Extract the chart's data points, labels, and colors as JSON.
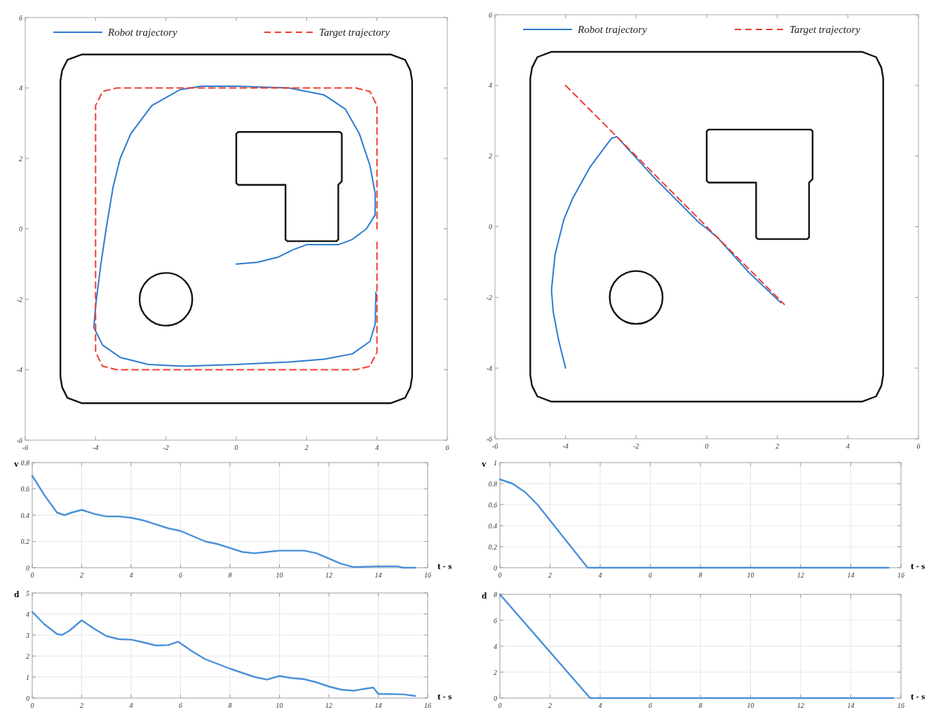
{
  "chart_data": [
    {
      "type": "line",
      "xlim": [
        -6,
        6
      ],
      "ylim": [
        -6,
        6
      ],
      "xticks": [
        -6,
        -4,
        -2,
        0,
        2,
        4,
        6
      ],
      "yticks": [
        -6,
        -4,
        -2,
        0,
        2,
        4,
        6
      ],
      "grid": false,
      "legend": "top",
      "series": [
        {
          "name": "Robot trajectory",
          "color": "#2e7bcf",
          "line_style": "solid",
          "x": [
            0,
            0.6,
            1.2,
            1.6,
            2,
            2.9,
            3.3,
            3.7,
            3.95,
            3.95,
            3.8,
            3.5,
            3.1,
            2.5,
            1.5,
            0,
            -1,
            -1.6,
            -2.4,
            -3,
            -3.3,
            -3.5,
            -3.7,
            -3.85,
            -4,
            -4.05,
            -3.8,
            -3.3,
            -2.5,
            -1.5,
            0,
            1.5,
            2.5,
            3.3,
            3.8,
            3.95,
            3.97
          ],
          "values": [
            -1,
            -0.95,
            -0.8,
            -0.6,
            -0.45,
            -0.45,
            -0.3,
            0,
            0.4,
            1,
            1.8,
            2.7,
            3.4,
            3.8,
            4,
            4.05,
            4.05,
            3.95,
            3.5,
            2.7,
            2,
            1.2,
            0,
            -1,
            -2.2,
            -2.8,
            -3.3,
            -3.65,
            -3.85,
            -3.9,
            -3.85,
            -3.78,
            -3.7,
            -3.55,
            -3.2,
            -2.7,
            -1.8
          ]
        },
        {
          "name": "Target trajectory",
          "color": "#f03c2e",
          "line_style": "dashed",
          "x": [
            4,
            4,
            3.8,
            3.4,
            -3.4,
            -3.8,
            -4,
            -4,
            -3.8,
            -3.4,
            3.4,
            3.8,
            4,
            4
          ],
          "values": [
            0,
            3.5,
            3.9,
            4,
            4,
            3.9,
            3.5,
            -3.5,
            -3.9,
            -4,
            -4,
            -3.9,
            -3.5,
            -0.3
          ]
        }
      ]
    },
    {
      "type": "line",
      "xlim": [
        -6,
        6
      ],
      "ylim": [
        -6,
        6
      ],
      "xticks": [
        -6,
        -4,
        -2,
        0,
        2,
        4,
        6
      ],
      "yticks": [
        -6,
        -4,
        -2,
        0,
        2,
        4,
        6
      ],
      "grid": false,
      "legend": "top",
      "series": [
        {
          "name": "Robot trajectory",
          "color": "#2e7bcf",
          "line_style": "solid",
          "x": [
            -4,
            -4.2,
            -4.35,
            -4.4,
            -4.3,
            -4.05,
            -3.8,
            -3.3,
            -2.7,
            -2.55,
            -1.5,
            -0.2,
            0,
            0.3,
            1.2,
            2.1
          ],
          "values": [
            -4,
            -3.2,
            -2.4,
            -1.8,
            -0.8,
            0.2,
            0.8,
            1.7,
            2.5,
            2.55,
            1.4,
            0.1,
            -0.05,
            -0.3,
            -1.3,
            -2.15
          ]
        },
        {
          "name": "Target trajectory",
          "color": "#f03c2e",
          "line_style": "dashed",
          "x": [
            -4,
            2.2
          ],
          "values": [
            4,
            -2.2
          ]
        }
      ]
    },
    {
      "type": "line",
      "ylabel": "v",
      "xlabel": "t - s",
      "xlim": [
        0,
        16
      ],
      "ylim": [
        0,
        0.8
      ],
      "xticks": [
        0,
        2,
        4,
        6,
        8,
        10,
        12,
        14,
        16
      ],
      "yticks": [
        0,
        0.2,
        0.4,
        0.6,
        0.8
      ],
      "grid": true,
      "series": [
        {
          "color": "#4a90d9",
          "x": [
            0,
            0.5,
            1,
            1.3,
            1.6,
            2,
            2.5,
            3,
            3.5,
            4,
            4.5,
            5,
            5.5,
            6,
            6.5,
            7,
            7.5,
            8,
            8.5,
            9,
            9.5,
            10,
            10.5,
            11,
            11.5,
            12,
            12.5,
            13,
            14,
            14.8,
            15,
            15.5
          ],
          "values": [
            0.7,
            0.55,
            0.42,
            0.4,
            0.42,
            0.44,
            0.41,
            0.39,
            0.39,
            0.38,
            0.36,
            0.33,
            0.3,
            0.28,
            0.24,
            0.2,
            0.18,
            0.15,
            0.12,
            0.11,
            0.12,
            0.13,
            0.13,
            0.13,
            0.11,
            0.07,
            0.03,
            0.005,
            0.01,
            0.01,
            0,
            0
          ]
        }
      ]
    },
    {
      "type": "line",
      "ylabel": "v",
      "xlabel": "t - s",
      "xlim": [
        0,
        16
      ],
      "ylim": [
        0,
        1
      ],
      "xticks": [
        0,
        2,
        4,
        6,
        8,
        10,
        12,
        14,
        16
      ],
      "yticks": [
        0,
        0.2,
        0.4,
        0.6,
        0.8,
        1
      ],
      "grid": true,
      "series": [
        {
          "color": "#4a90d9",
          "x": [
            0,
            0.5,
            1,
            1.5,
            2,
            2.5,
            3,
            3.5,
            15.5
          ],
          "values": [
            0.84,
            0.8,
            0.72,
            0.6,
            0.45,
            0.3,
            0.15,
            0,
            0
          ]
        }
      ]
    },
    {
      "type": "line",
      "ylabel": "d",
      "xlabel": "t - s",
      "xlim": [
        0,
        16
      ],
      "ylim": [
        0,
        5
      ],
      "xticks": [
        0,
        2,
        4,
        6,
        8,
        10,
        12,
        14,
        16
      ],
      "yticks": [
        0,
        1,
        2,
        3,
        4,
        5
      ],
      "grid": true,
      "series": [
        {
          "color": "#4a90d9",
          "x": [
            0,
            0.5,
            1,
            1.2,
            1.5,
            2,
            2.5,
            3,
            3.5,
            4,
            4.5,
            5,
            5.5,
            5.9,
            6.5,
            7,
            8,
            9,
            9.5,
            10,
            10.5,
            11,
            11.5,
            12,
            12.5,
            13,
            13.5,
            13.8,
            14,
            15,
            15.5
          ],
          "values": [
            4.1,
            3.5,
            3.05,
            3,
            3.2,
            3.7,
            3.3,
            2.95,
            2.8,
            2.78,
            2.65,
            2.5,
            2.52,
            2.68,
            2.2,
            1.85,
            1.4,
            1,
            0.88,
            1.05,
            0.95,
            0.9,
            0.75,
            0.55,
            0.4,
            0.35,
            0.45,
            0.5,
            0.2,
            0.18,
            0.1
          ]
        }
      ]
    },
    {
      "type": "line",
      "ylabel": "d",
      "xlabel": "t - s",
      "xlim": [
        0,
        16
      ],
      "ylim": [
        0,
        8
      ],
      "xticks": [
        0,
        2,
        4,
        6,
        8,
        10,
        12,
        14,
        16
      ],
      "yticks": [
        0,
        2,
        4,
        6,
        8
      ],
      "grid": true,
      "series": [
        {
          "color": "#4a90d9",
          "x": [
            0,
            3.6,
            15.7
          ],
          "values": [
            8,
            0,
            0
          ]
        }
      ]
    }
  ]
}
